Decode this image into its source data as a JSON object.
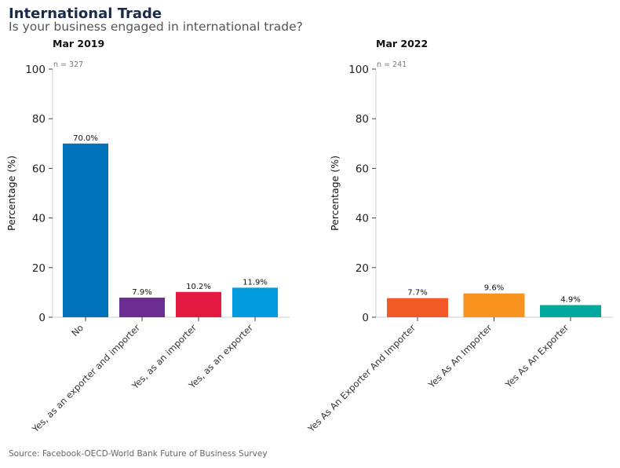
{
  "header": {
    "title": "International Trade",
    "subtitle": "Is your business engaged in international trade?"
  },
  "footer": {
    "source": "Source: Facebook-OECD-World Bank Future of Business Survey"
  },
  "chart_data": [
    {
      "type": "bar",
      "title": "Mar 2019",
      "n_label": "n = 327",
      "ylabel": "Percentage (%)",
      "ylim": [
        0,
        100
      ],
      "yticks": [
        0,
        20,
        40,
        60,
        80,
        100
      ],
      "categories": [
        "No",
        "Yes, as an exporter and importer",
        "Yes, as an importer",
        "Yes, as an exporter"
      ],
      "values": [
        70.0,
        7.9,
        10.2,
        11.9
      ],
      "value_labels": [
        "70.0%",
        "7.9%",
        "10.2%",
        "11.9%"
      ],
      "colors": [
        "#0072bc",
        "#6b2d91",
        "#e4193f",
        "#009cde"
      ]
    },
    {
      "type": "bar",
      "title": "Mar 2022",
      "n_label": "n = 241",
      "ylabel": "Percentage (%)",
      "ylim": [
        0,
        100
      ],
      "yticks": [
        0,
        20,
        40,
        60,
        80,
        100
      ],
      "categories": [
        "Yes As An Exporter And Importer",
        "Yes As An Importer",
        "Yes As An Exporter"
      ],
      "values": [
        7.7,
        9.6,
        4.9
      ],
      "value_labels": [
        "7.7%",
        "9.6%",
        "4.9%"
      ],
      "colors": [
        "#f15a24",
        "#f7931e",
        "#00a99d"
      ]
    }
  ]
}
